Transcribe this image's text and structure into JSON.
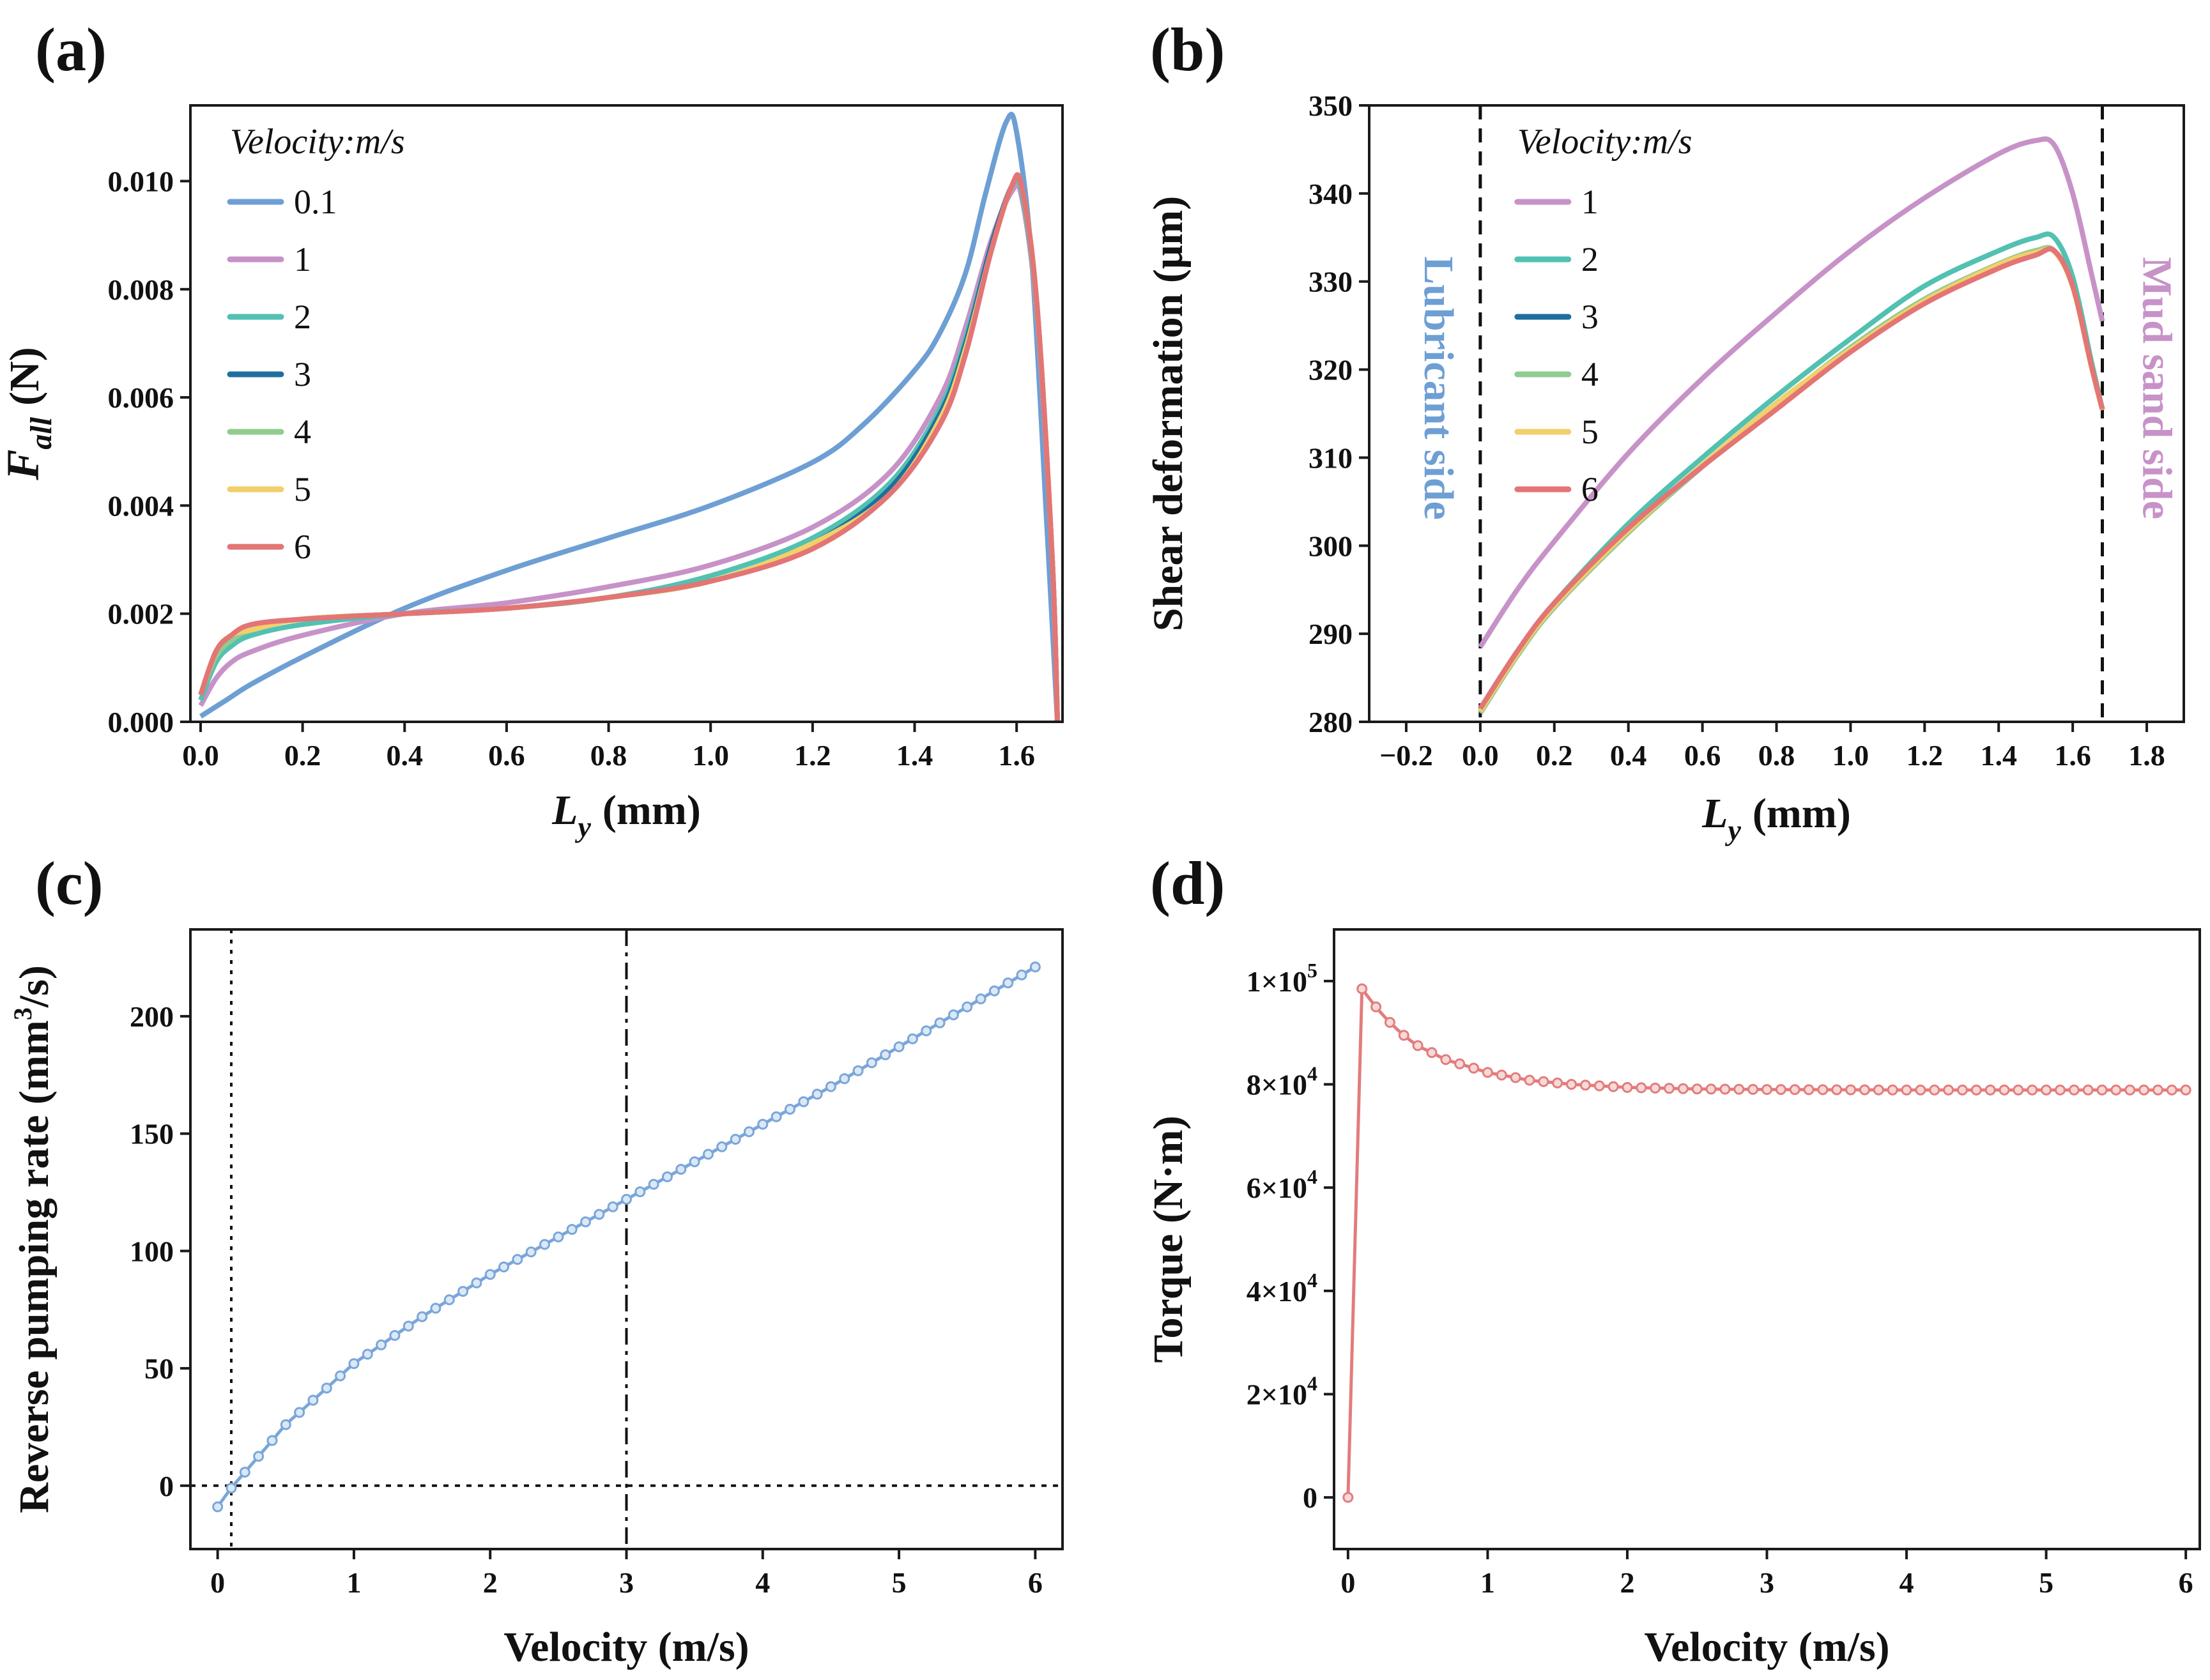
{
  "colors": {
    "v0_1": "#6e9fd4",
    "v1": "#c792c8",
    "v2": "#52c1b2",
    "v3": "#1f6f9e",
    "v4": "#8fcc8f",
    "v5": "#f2cf6b",
    "v6": "#e37575",
    "c_series": "#7aa6d9",
    "d_series": "#e37c7c"
  },
  "chart_data": [
    {
      "id": "a",
      "panel_label": "(a)",
      "type": "line",
      "xlabel": "L",
      "xlabel_sub": "y",
      "xlabel_unit": "(mm)",
      "ylabel": "F",
      "ylabel_sub": "all",
      "ylabel_unit": "(N)",
      "xlim": [
        -0.02,
        1.69
      ],
      "ylim": [
        0,
        0.0114
      ],
      "xticks": [
        0.0,
        0.2,
        0.4,
        0.6,
        0.8,
        1.0,
        1.2,
        1.4,
        1.6
      ],
      "xtick_labels": [
        "0.0",
        "0.2",
        "0.4",
        "0.6",
        "0.8",
        "1.0",
        "1.2",
        "1.4",
        "1.6"
      ],
      "yticks": [
        0,
        0.002,
        0.004,
        0.006,
        0.008,
        0.01
      ],
      "ytick_labels": [
        "0.000",
        "0.002",
        "0.004",
        "0.006",
        "0.008",
        "0.010"
      ],
      "legend": {
        "title": "Velocity:m/s",
        "position": "top-left"
      },
      "series": [
        {
          "name": "0.1",
          "color_key": "v0_1",
          "x": [
            0,
            0.05,
            0.1,
            0.2,
            0.4,
            0.6,
            0.8,
            1.0,
            1.2,
            1.3,
            1.4,
            1.45,
            1.5,
            1.54,
            1.58,
            1.6,
            1.63,
            1.66,
            1.68
          ],
          "y": [
            0.0001,
            0.0004,
            0.0007,
            0.0012,
            0.0021,
            0.0028,
            0.0034,
            0.004,
            0.0048,
            0.0055,
            0.0065,
            0.0072,
            0.0083,
            0.0098,
            0.0111,
            0.0109,
            0.0085,
            0.0035,
            0.0
          ]
        },
        {
          "name": "1",
          "color_key": "v1",
          "x": [
            0,
            0.03,
            0.06,
            0.1,
            0.2,
            0.4,
            0.6,
            0.8,
            1.0,
            1.2,
            1.35,
            1.45,
            1.5,
            1.55,
            1.59,
            1.61,
            1.64,
            1.67,
            1.68
          ],
          "y": [
            0.0003,
            0.0008,
            0.0011,
            0.0013,
            0.0016,
            0.002,
            0.0022,
            0.0025,
            0.0029,
            0.0036,
            0.0046,
            0.006,
            0.0073,
            0.0089,
            0.0098,
            0.0097,
            0.0075,
            0.003,
            0.0
          ]
        },
        {
          "name": "2",
          "color_key": "v2",
          "x": [
            0,
            0.03,
            0.06,
            0.1,
            0.2,
            0.4,
            0.6,
            0.8,
            1.0,
            1.2,
            1.35,
            1.45,
            1.5,
            1.55,
            1.59,
            1.61,
            1.64,
            1.67,
            1.68
          ],
          "y": [
            0.0004,
            0.0011,
            0.0014,
            0.0016,
            0.0018,
            0.002,
            0.0021,
            0.0023,
            0.0027,
            0.0034,
            0.0044,
            0.0058,
            0.0071,
            0.0088,
            0.0099,
            0.0098,
            0.0076,
            0.003,
            0.0
          ]
        },
        {
          "name": "3",
          "color_key": "v3",
          "x": [
            0,
            0.03,
            0.06,
            0.1,
            0.2,
            0.4,
            0.6,
            0.8,
            1.0,
            1.2,
            1.35,
            1.45,
            1.5,
            1.55,
            1.59,
            1.61,
            1.64,
            1.67,
            1.68
          ],
          "y": [
            0.0005,
            0.0012,
            0.0015,
            0.0017,
            0.0019,
            0.002,
            0.0021,
            0.0023,
            0.0026,
            0.0033,
            0.0043,
            0.0057,
            0.007,
            0.0088,
            0.0099,
            0.0099,
            0.0077,
            0.003,
            0.0
          ]
        },
        {
          "name": "4",
          "color_key": "v4",
          "x": [
            0,
            0.03,
            0.06,
            0.1,
            0.2,
            0.4,
            0.6,
            0.8,
            1.0,
            1.2,
            1.35,
            1.45,
            1.5,
            1.55,
            1.59,
            1.61,
            1.64,
            1.67,
            1.68
          ],
          "y": [
            0.0005,
            0.0012,
            0.0015,
            0.0017,
            0.0019,
            0.002,
            0.0021,
            0.0023,
            0.0026,
            0.0033,
            0.0042,
            0.0056,
            0.0069,
            0.0087,
            0.0099,
            0.0099,
            0.0077,
            0.003,
            0.0
          ]
        },
        {
          "name": "5",
          "color_key": "v5",
          "x": [
            0,
            0.03,
            0.06,
            0.1,
            0.2,
            0.4,
            0.6,
            0.8,
            1.0,
            1.2,
            1.35,
            1.45,
            1.5,
            1.55,
            1.59,
            1.61,
            1.64,
            1.67,
            1.68
          ],
          "y": [
            0.0005,
            0.0013,
            0.0016,
            0.0017,
            0.0019,
            0.002,
            0.0021,
            0.0023,
            0.0026,
            0.0033,
            0.0042,
            0.0056,
            0.0069,
            0.0087,
            0.0099,
            0.0099,
            0.0077,
            0.003,
            0.0
          ]
        },
        {
          "name": "6",
          "color_key": "v6",
          "x": [
            0,
            0.03,
            0.06,
            0.1,
            0.2,
            0.4,
            0.6,
            0.8,
            1.0,
            1.2,
            1.35,
            1.45,
            1.5,
            1.55,
            1.59,
            1.61,
            1.64,
            1.67,
            1.68
          ],
          "y": [
            0.0005,
            0.0013,
            0.0016,
            0.0018,
            0.0019,
            0.002,
            0.0021,
            0.0023,
            0.0026,
            0.0032,
            0.0042,
            0.0055,
            0.0068,
            0.0087,
            0.0099,
            0.0099,
            0.0077,
            0.003,
            0.0
          ]
        }
      ]
    },
    {
      "id": "b",
      "panel_label": "(b)",
      "type": "line",
      "xlabel": "L",
      "xlabel_sub": "y",
      "xlabel_unit": "(mm)",
      "ylabel": "Shear deformation (μm)",
      "xlim": [
        -0.3,
        1.9
      ],
      "ylim": [
        280,
        350
      ],
      "xticks": [
        -0.2,
        0.0,
        0.2,
        0.4,
        0.6,
        0.8,
        1.0,
        1.2,
        1.4,
        1.6,
        1.8
      ],
      "xtick_labels": [
        "−0.2",
        "0.0",
        "0.2",
        "0.4",
        "0.6",
        "0.8",
        "1.0",
        "1.2",
        "1.4",
        "1.6",
        "1.8"
      ],
      "yticks": [
        280,
        290,
        300,
        310,
        320,
        330,
        340,
        350
      ],
      "ytick_labels": [
        "280",
        "290",
        "300",
        "310",
        "320",
        "330",
        "340",
        "350"
      ],
      "vlines": [
        0.0,
        1.68
      ],
      "annotations": [
        {
          "text": "Lubricant side",
          "color_key": "v0_1",
          "side": "left"
        },
        {
          "text": "Mud sand side",
          "color_key": "v1",
          "side": "right"
        }
      ],
      "legend": {
        "title": "Velocity:m/s",
        "position": "top-left"
      },
      "series": [
        {
          "name": "1",
          "color_key": "v1",
          "x": [
            0,
            0.1,
            0.2,
            0.4,
            0.6,
            0.8,
            1.0,
            1.2,
            1.4,
            1.5,
            1.55,
            1.6,
            1.65,
            1.68
          ],
          "y": [
            288.5,
            295.0,
            300.5,
            310.5,
            319.0,
            326.5,
            333.5,
            339.5,
            344.5,
            346.0,
            345.5,
            340.0,
            331.0,
            325.5
          ]
        },
        {
          "name": "2",
          "color_key": "v2",
          "x": [
            0,
            0.1,
            0.2,
            0.4,
            0.6,
            0.8,
            1.0,
            1.2,
            1.4,
            1.5,
            1.55,
            1.6,
            1.65,
            1.68
          ],
          "y": [
            281.5,
            288.0,
            293.5,
            302.5,
            310.0,
            317.0,
            323.5,
            329.5,
            333.5,
            335.0,
            335.0,
            330.5,
            321.0,
            315.5
          ]
        },
        {
          "name": "3",
          "color_key": "v3",
          "x": [
            0,
            0.1,
            0.2,
            0.4,
            0.6,
            0.8,
            1.0,
            1.2,
            1.4,
            1.5,
            1.55,
            1.6,
            1.65,
            1.68
          ],
          "y": [
            281.0,
            287.5,
            293.0,
            301.5,
            309.0,
            316.0,
            322.5,
            328.0,
            332.0,
            333.5,
            333.5,
            329.5,
            320.5,
            315.5
          ]
        },
        {
          "name": "4",
          "color_key": "v4",
          "x": [
            0,
            0.1,
            0.2,
            0.4,
            0.6,
            0.8,
            1.0,
            1.2,
            1.4,
            1.5,
            1.55,
            1.6,
            1.65,
            1.68
          ],
          "y": [
            281.0,
            287.5,
            293.0,
            301.5,
            309.0,
            316.0,
            322.5,
            328.0,
            332.0,
            333.5,
            333.5,
            329.5,
            320.5,
            315.5
          ]
        },
        {
          "name": "5",
          "color_key": "v5",
          "x": [
            0,
            0.1,
            0.2,
            0.4,
            0.6,
            0.8,
            1.0,
            1.2,
            1.4,
            1.5,
            1.55,
            1.6,
            1.65,
            1.68
          ],
          "y": [
            281.2,
            287.7,
            293.2,
            301.7,
            309.2,
            316.2,
            322.3,
            327.8,
            331.9,
            333.3,
            333.4,
            329.4,
            320.4,
            315.4
          ]
        },
        {
          "name": "6",
          "color_key": "v6",
          "x": [
            0,
            0.1,
            0.2,
            0.4,
            0.6,
            0.8,
            1.0,
            1.2,
            1.4,
            1.5,
            1.55,
            1.6,
            1.65,
            1.68
          ],
          "y": [
            281.5,
            288.0,
            293.5,
            302.0,
            309.0,
            315.5,
            322.0,
            327.5,
            331.5,
            333.0,
            333.5,
            329.5,
            320.5,
            315.5
          ]
        }
      ]
    },
    {
      "id": "c",
      "panel_label": "(c)",
      "type": "line",
      "xlabel": "Velocity (m/s)",
      "ylabel": "Reverse pumping rate (mm",
      "ylabel_sup": "3",
      "ylabel_tail": "/s)",
      "xlim": [
        -0.2,
        6.2
      ],
      "ylim": [
        -27,
        237
      ],
      "xticks": [
        0,
        1,
        2,
        3,
        4,
        5,
        6
      ],
      "xtick_labels": [
        "0",
        "1",
        "2",
        "3",
        "4",
        "5",
        "6"
      ],
      "yticks": [
        0,
        50,
        100,
        150,
        200
      ],
      "ytick_labels": [
        "0",
        "50",
        "100",
        "150",
        "200"
      ],
      "hlines": [
        0
      ],
      "vlines_dotted": [
        0.1
      ],
      "vlines_dashdot": [
        3
      ],
      "series": [
        {
          "name": "Reverse pumping rate",
          "color_key": "c_series",
          "marker": "circle",
          "x_start": 0,
          "x_end": 6,
          "x_step": 0.1,
          "y_anchor_x": [
            0,
            0.1,
            0.5,
            1,
            1.5,
            2,
            2.5,
            3,
            3.5,
            4,
            4.5,
            5,
            5.5,
            6
          ],
          "y_anchor_y": [
            -9,
            -1,
            26,
            52,
            72,
            90,
            106,
            122,
            138,
            154,
            170,
            187,
            204,
            221
          ]
        }
      ]
    },
    {
      "id": "d",
      "panel_label": "(d)",
      "type": "line",
      "xlabel": "Velocity (m/s)",
      "ylabel": "Torque (N·m)",
      "xlim": [
        -0.1,
        6.1
      ],
      "ylim": [
        -10000,
        110000
      ],
      "xticks": [
        0,
        1,
        2,
        3,
        4,
        5,
        6
      ],
      "xtick_labels": [
        "0",
        "1",
        "2",
        "3",
        "4",
        "5",
        "6"
      ],
      "yticks": [
        0,
        20000,
        40000,
        60000,
        80000,
        100000
      ],
      "ytick_labels": [
        "0",
        "2×10",
        "4×10",
        "6×10",
        "8×10",
        "1×10"
      ],
      "ytick_sups": [
        "",
        "4",
        "4",
        "4",
        "4",
        "5"
      ],
      "series": [
        {
          "name": "Torque",
          "color_key": "d_series",
          "marker": "circle",
          "x_start": 0.1,
          "x_end": 6,
          "x_step": 0.1,
          "origin_point": [
            0,
            0
          ],
          "y_anchor_x": [
            0.1,
            0.2,
            0.3,
            0.4,
            0.5,
            0.7,
            1.0,
            1.3,
            1.6,
            2.0,
            2.5,
            3.0,
            4.0,
            5.0,
            6.0
          ],
          "y_anchor_y": [
            98500,
            95000,
            92000,
            89500,
            87500,
            84800,
            82300,
            80800,
            80000,
            79400,
            79100,
            79000,
            78900,
            78900,
            78900
          ]
        }
      ]
    }
  ]
}
